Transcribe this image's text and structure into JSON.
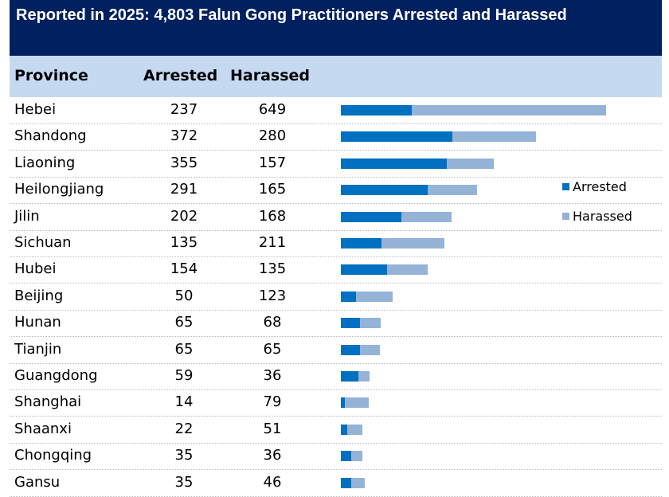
{
  "chart_data": {
    "type": "bar",
    "stacked": true,
    "orientation": "horizontal",
    "title": "Reported in 2025: 4,803 Falun Gong Practitioners Arrested and Harassed",
    "columns": [
      "Province",
      "Arrested",
      "Harassed"
    ],
    "categories": [
      "Hebei",
      "Shandong",
      "Liaoning",
      "Heilongjiang",
      "Jilin",
      "Sichuan",
      "Hubei",
      "Beijing",
      "Hunan",
      "Tianjin",
      "Guangdong",
      "Shanghai",
      "Shaanxi",
      "Chongqing",
      "Gansu"
    ],
    "series": [
      {
        "name": "Arrested",
        "color": "#0070c0",
        "values": [
          237,
          372,
          355,
          291,
          202,
          135,
          154,
          50,
          65,
          65,
          59,
          14,
          22,
          35,
          35
        ]
      },
      {
        "name": "Harassed",
        "color": "#95b3d7",
        "values": [
          649,
          280,
          157,
          165,
          168,
          211,
          135,
          123,
          68,
          65,
          36,
          79,
          51,
          36,
          46
        ]
      }
    ],
    "legend": "right",
    "grid": false
  }
}
